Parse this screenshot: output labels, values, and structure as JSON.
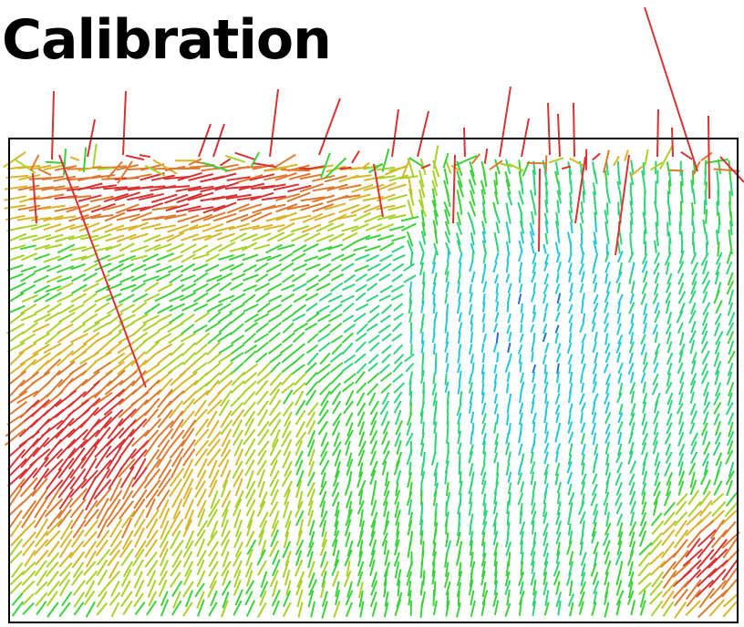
{
  "title": "Calibration",
  "colormap": [
    "#2a6fd6",
    "#22c9d9",
    "#2ed57a",
    "#3bd23b",
    "#a8d22a",
    "#d8b52a",
    "#de7a30",
    "#d93232"
  ]
}
